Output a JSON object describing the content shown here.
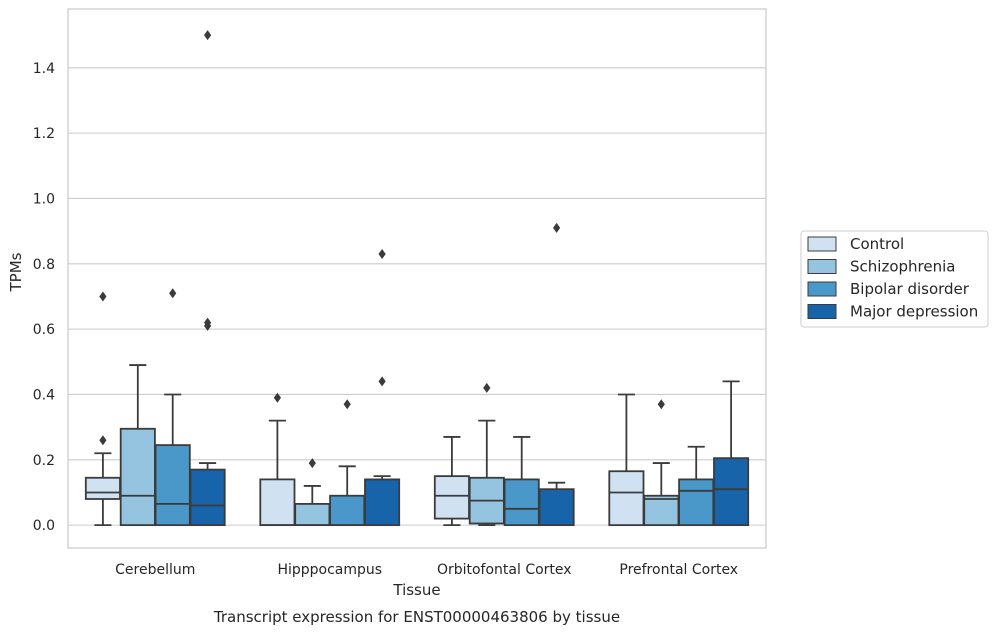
{
  "chart_data": {
    "type": "box",
    "caption": "Transcript expression for ENST00000463806 by tissue",
    "xlabel": "Tissue",
    "ylabel": "TPMs",
    "ylim": [
      -0.07,
      1.58
    ],
    "yticks": [
      "0.0",
      "0.2",
      "0.4",
      "0.6",
      "0.8",
      "1.0",
      "1.2",
      "1.4"
    ],
    "ytick_values": [
      0.0,
      0.2,
      0.4,
      0.6,
      0.8,
      1.0,
      1.2,
      1.4
    ],
    "grid": true,
    "legend_position": "right",
    "categories": [
      "Cerebellum",
      "Hipppocampus",
      "Orbitofontal Cortex",
      "Prefrontal Cortex"
    ],
    "series": [
      {
        "name": "Control",
        "color": "#d0e1f2",
        "boxes": [
          {
            "whislo": 0.0,
            "q1": 0.08,
            "med": 0.1,
            "q3": 0.145,
            "whishi": 0.22,
            "fliers": [
              0.26,
              0.7
            ]
          },
          {
            "whislo": 0.0,
            "q1": 0.0,
            "med": 0.0,
            "q3": 0.14,
            "whishi": 0.32,
            "fliers": [
              0.39
            ]
          },
          {
            "whislo": 0.0,
            "q1": 0.02,
            "med": 0.09,
            "q3": 0.15,
            "whishi": 0.27,
            "fliers": []
          },
          {
            "whislo": 0.0,
            "q1": 0.0,
            "med": 0.1,
            "q3": 0.165,
            "whishi": 0.4,
            "fliers": []
          }
        ]
      },
      {
        "name": "Schizophrenia",
        "color": "#94c4df",
        "boxes": [
          {
            "whislo": 0.0,
            "q1": 0.0,
            "med": 0.09,
            "q3": 0.295,
            "whishi": 0.49,
            "fliers": []
          },
          {
            "whislo": 0.0,
            "q1": 0.0,
            "med": 0.0,
            "q3": 0.065,
            "whishi": 0.12,
            "fliers": [
              0.19
            ]
          },
          {
            "whislo": 0.0,
            "q1": 0.005,
            "med": 0.075,
            "q3": 0.145,
            "whishi": 0.32,
            "fliers": [
              0.42
            ]
          },
          {
            "whislo": 0.0,
            "q1": 0.0,
            "med": 0.08,
            "q3": 0.09,
            "whishi": 0.19,
            "fliers": [
              0.37
            ]
          }
        ]
      },
      {
        "name": "Bipolar disorder",
        "color": "#4a98c9",
        "boxes": [
          {
            "whislo": 0.0,
            "q1": 0.0,
            "med": 0.065,
            "q3": 0.245,
            "whishi": 0.4,
            "fliers": [
              0.71
            ]
          },
          {
            "whislo": 0.0,
            "q1": 0.0,
            "med": 0.0,
            "q3": 0.09,
            "whishi": 0.18,
            "fliers": [
              0.37
            ]
          },
          {
            "whislo": 0.0,
            "q1": 0.0,
            "med": 0.05,
            "q3": 0.14,
            "whishi": 0.27,
            "fliers": []
          },
          {
            "whislo": 0.0,
            "q1": 0.0,
            "med": 0.105,
            "q3": 0.14,
            "whishi": 0.24,
            "fliers": []
          }
        ]
      },
      {
        "name": "Major depression",
        "color": "#1764ab",
        "boxes": [
          {
            "whislo": 0.0,
            "q1": 0.0,
            "med": 0.06,
            "q3": 0.17,
            "whishi": 0.19,
            "fliers": [
              0.61,
              0.62,
              1.5
            ]
          },
          {
            "whislo": 0.0,
            "q1": 0.0,
            "med": 0.14,
            "q3": 0.14,
            "whishi": 0.15,
            "fliers": [
              0.44,
              0.83
            ]
          },
          {
            "whislo": 0.0,
            "q1": 0.0,
            "med": 0.0,
            "q3": 0.11,
            "whishi": 0.13,
            "fliers": [
              0.91
            ]
          },
          {
            "whislo": 0.0,
            "q1": 0.0,
            "med": 0.11,
            "q3": 0.205,
            "whishi": 0.44,
            "fliers": []
          }
        ]
      }
    ]
  }
}
